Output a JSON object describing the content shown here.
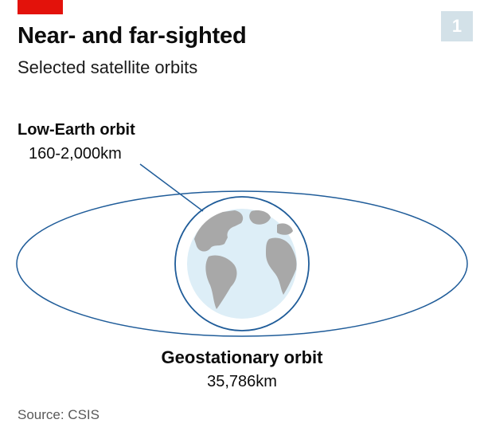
{
  "header": {
    "title": "Near- and far-sighted",
    "subtitle": "Selected satellite orbits",
    "badge": "1"
  },
  "orbits": {
    "low_earth": {
      "label": "Low-Earth orbit",
      "range": "160-2,000km"
    },
    "geostationary": {
      "label": "Geostationary orbit",
      "range": "35,786km"
    }
  },
  "footer": {
    "source": "Source: CSIS"
  },
  "colors": {
    "accent": "#e3120b",
    "orbit_line": "#1f5c99",
    "ocean": "#ddeef7",
    "land": "#a8a8a8",
    "badge": "#d3e1e8"
  }
}
